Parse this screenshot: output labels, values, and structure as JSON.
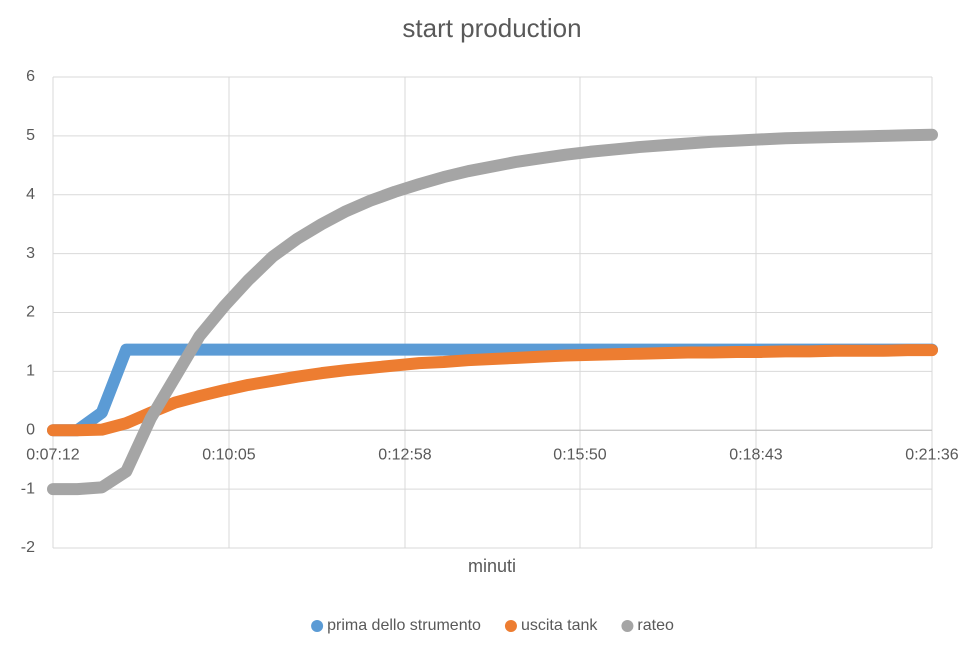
{
  "chart_data": {
    "type": "line",
    "title": "start production",
    "x_label": "minuti",
    "x": [
      432,
      456,
      480,
      504,
      528,
      552,
      576,
      600,
      624,
      648,
      672,
      696,
      720,
      744,
      768,
      792,
      816,
      840,
      864,
      888,
      912,
      936,
      960,
      984,
      1008,
      1032,
      1056,
      1080,
      1104,
      1128,
      1152,
      1176,
      1200,
      1224,
      1248,
      1272,
      1296
    ],
    "series": [
      {
        "name": "prima dello strumento",
        "color": "#5b9bd5",
        "values": [
          0,
          0,
          0.3,
          1.37,
          1.37,
          1.37,
          1.37,
          1.37,
          1.37,
          1.37,
          1.37,
          1.37,
          1.37,
          1.37,
          1.37,
          1.37,
          1.37,
          1.37,
          1.37,
          1.37,
          1.37,
          1.37,
          1.37,
          1.37,
          1.37,
          1.37,
          1.37,
          1.37,
          1.37,
          1.37,
          1.37,
          1.37,
          1.37,
          1.37,
          1.37,
          1.37,
          1.37
        ]
      },
      {
        "name": "uscita tank",
        "color": "#ed7d31",
        "values": [
          0,
          0,
          0.01,
          0.12,
          0.3,
          0.47,
          0.58,
          0.68,
          0.77,
          0.84,
          0.91,
          0.97,
          1.02,
          1.06,
          1.1,
          1.14,
          1.16,
          1.19,
          1.21,
          1.23,
          1.25,
          1.27,
          1.28,
          1.29,
          1.3,
          1.31,
          1.32,
          1.32,
          1.33,
          1.33,
          1.34,
          1.34,
          1.35,
          1.35,
          1.35,
          1.36,
          1.36
        ]
      },
      {
        "name": "rateo",
        "color": "#a5a5a5",
        "values": [
          -1,
          -1,
          -0.97,
          -0.7,
          0.2,
          0.9,
          1.6,
          2.1,
          2.55,
          2.95,
          3.25,
          3.5,
          3.72,
          3.9,
          4.05,
          4.18,
          4.3,
          4.4,
          4.48,
          4.56,
          4.62,
          4.68,
          4.73,
          4.77,
          4.81,
          4.84,
          4.87,
          4.9,
          4.92,
          4.94,
          4.96,
          4.97,
          4.98,
          4.99,
          5.0,
          5.01,
          5.02
        ]
      }
    ],
    "xlim": [
      432,
      1296
    ],
    "xticks": [
      {
        "value": 432,
        "label": "0:07:12"
      },
      {
        "value": 605,
        "label": "0:10:05"
      },
      {
        "value": 778,
        "label": "0:12:58"
      },
      {
        "value": 950,
        "label": "0:15:50"
      },
      {
        "value": 1123,
        "label": "0:18:43"
      },
      {
        "value": 1296,
        "label": "0:21:36"
      }
    ],
    "ylim": [
      -2,
      6
    ],
    "yticks": [
      -2,
      -1,
      0,
      1,
      2,
      3,
      4,
      5,
      6
    ],
    "grid": true,
    "legend": "bottom"
  }
}
